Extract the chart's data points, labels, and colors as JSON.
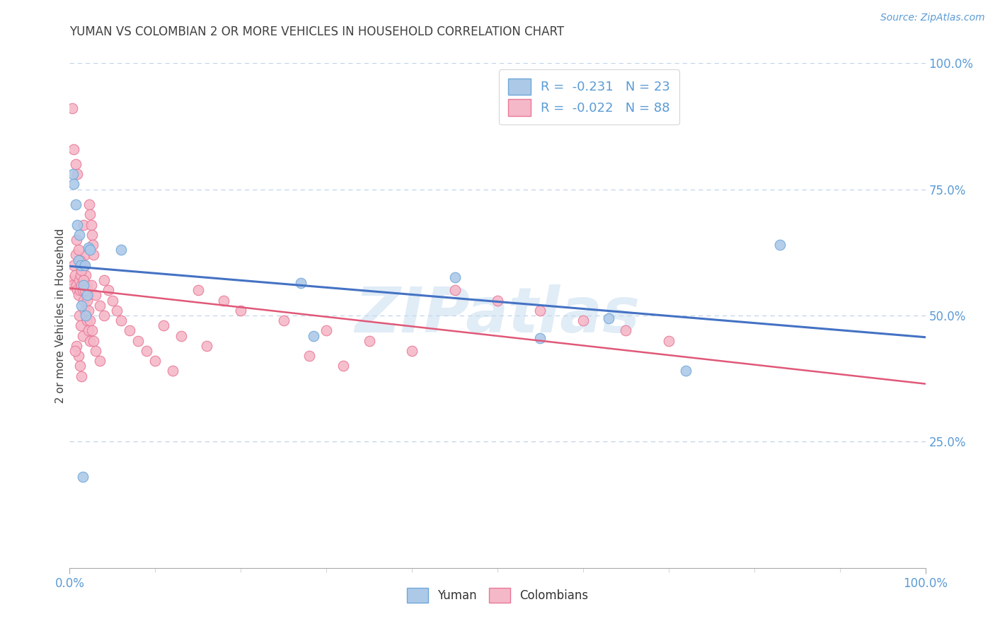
{
  "title": "YUMAN VS COLOMBIAN 2 OR MORE VEHICLES IN HOUSEHOLD CORRELATION CHART",
  "source": "Source: ZipAtlas.com",
  "ylabel": "2 or more Vehicles in Household",
  "xlim": [
    0,
    1
  ],
  "ylim": [
    0,
    1
  ],
  "legend_label1": "R =  -0.231   N = 23",
  "legend_label2": "R =  -0.022   N = 88",
  "color_yuman_fill": "#adc9e8",
  "color_yuman_edge": "#6fa8d8",
  "color_colombian_fill": "#f5b8c8",
  "color_colombian_edge": "#e87898",
  "color_trendline_yuman": "#4472c4",
  "color_trendline_colombian": "#e05878",
  "color_grid": "#c0d4e8",
  "color_axis_text": "#5b9bd5",
  "color_title": "#404040",
  "color_source": "#5b9bd5",
  "watermark_text": "ZIPatlas",
  "watermark_color": "#c8ddf0",
  "title_fontsize": 12,
  "axis_fontsize": 11,
  "legend_fontsize": 13,
  "tick_fontsize": 12,
  "yuman_x": [
    0.004,
    0.005,
    0.007,
    0.009,
    0.01,
    0.011,
    0.013,
    0.014,
    0.016,
    0.018,
    0.019,
    0.02,
    0.022,
    0.024,
    0.06,
    0.27,
    0.285,
    0.45,
    0.55,
    0.63,
    0.72,
    0.83,
    0.015
  ],
  "yuman_y": [
    0.78,
    0.76,
    0.72,
    0.68,
    0.61,
    0.66,
    0.6,
    0.52,
    0.56,
    0.6,
    0.5,
    0.54,
    0.635,
    0.63,
    0.63,
    0.565,
    0.46,
    0.575,
    0.455,
    0.495,
    0.39,
    0.64,
    0.18
  ],
  "colombian_x": [
    0.003,
    0.004,
    0.005,
    0.006,
    0.007,
    0.008,
    0.009,
    0.01,
    0.011,
    0.012,
    0.013,
    0.014,
    0.015,
    0.016,
    0.017,
    0.018,
    0.019,
    0.02,
    0.021,
    0.022,
    0.023,
    0.024,
    0.025,
    0.026,
    0.027,
    0.028,
    0.003,
    0.005,
    0.007,
    0.009,
    0.011,
    0.013,
    0.015,
    0.008,
    0.01,
    0.012,
    0.014,
    0.016,
    0.018,
    0.02,
    0.022,
    0.024,
    0.006,
    0.008,
    0.01,
    0.012,
    0.014,
    0.016,
    0.018,
    0.02,
    0.022,
    0.024,
    0.026,
    0.028,
    0.03,
    0.035,
    0.04,
    0.045,
    0.05,
    0.055,
    0.06,
    0.07,
    0.08,
    0.09,
    0.1,
    0.12,
    0.15,
    0.18,
    0.2,
    0.25,
    0.3,
    0.35,
    0.4,
    0.025,
    0.03,
    0.035,
    0.04,
    0.11,
    0.13,
    0.16,
    0.28,
    0.32,
    0.45,
    0.5,
    0.55,
    0.6,
    0.65,
    0.7
  ],
  "colombian_y": [
    0.57,
    0.56,
    0.6,
    0.58,
    0.62,
    0.56,
    0.55,
    0.54,
    0.57,
    0.55,
    0.58,
    0.56,
    0.55,
    0.68,
    0.6,
    0.62,
    0.58,
    0.56,
    0.55,
    0.54,
    0.72,
    0.7,
    0.68,
    0.66,
    0.64,
    0.62,
    0.91,
    0.83,
    0.8,
    0.78,
    0.5,
    0.48,
    0.46,
    0.44,
    0.42,
    0.4,
    0.38,
    0.53,
    0.51,
    0.49,
    0.47,
    0.45,
    0.43,
    0.65,
    0.63,
    0.61,
    0.59,
    0.57,
    0.55,
    0.53,
    0.51,
    0.49,
    0.47,
    0.45,
    0.43,
    0.41,
    0.57,
    0.55,
    0.53,
    0.51,
    0.49,
    0.47,
    0.45,
    0.43,
    0.41,
    0.39,
    0.55,
    0.53,
    0.51,
    0.49,
    0.47,
    0.45,
    0.43,
    0.56,
    0.54,
    0.52,
    0.5,
    0.48,
    0.46,
    0.44,
    0.42,
    0.4,
    0.55,
    0.53,
    0.51,
    0.49,
    0.47,
    0.45
  ]
}
